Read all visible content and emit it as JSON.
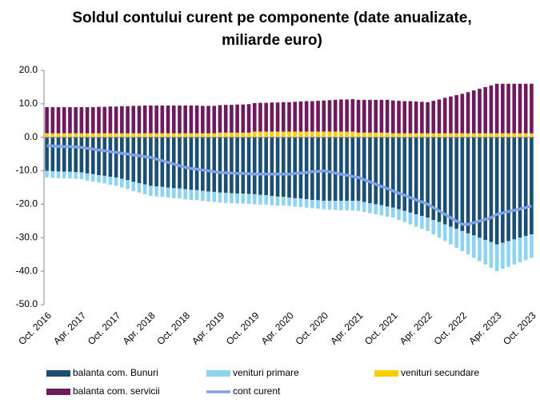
{
  "chart_data": {
    "type": "bar",
    "stacked": true,
    "title": [
      "Soldul contului curent pe componente (date anualizate,",
      "miliarde euro)"
    ],
    "categories": [
      "Oct. 2016",
      null,
      null,
      null,
      null,
      null,
      "Apr. 2017",
      null,
      null,
      null,
      null,
      null,
      "Oct. 2017",
      null,
      null,
      null,
      null,
      null,
      "Apr. 2018",
      null,
      null,
      null,
      null,
      null,
      "Oct. 2018",
      null,
      null,
      null,
      null,
      null,
      "Apr. 2019",
      null,
      null,
      null,
      null,
      null,
      "Oct. 2019",
      null,
      null,
      null,
      null,
      null,
      "Apr. 2020",
      null,
      null,
      null,
      null,
      null,
      "Oct. 2020",
      null,
      null,
      null,
      null,
      null,
      "Apr. 2021",
      null,
      null,
      null,
      null,
      null,
      "Oct. 2021",
      null,
      null,
      null,
      null,
      null,
      "Apr. 2022",
      null,
      null,
      null,
      null,
      null,
      "Oct. 2022",
      null,
      null,
      null,
      null,
      null,
      "Apr. 2023",
      null,
      null,
      null,
      null,
      null,
      "Oct. 2023"
    ],
    "series": [
      {
        "name": "balanta com. Bunuri",
        "color": "#1b4e70",
        "values": [
          -10,
          -10.1,
          -10.2,
          -10.3,
          -10.3,
          -10.4,
          -10.5,
          -10.8,
          -11,
          -11.3,
          -11.5,
          -11.8,
          -12,
          -12.4,
          -12.8,
          -13.3,
          -13.7,
          -14.1,
          -14.5,
          -14.7,
          -14.8,
          -15,
          -15.2,
          -15.3,
          -15.5,
          -15.7,
          -15.8,
          -16,
          -16.2,
          -16.3,
          -16.5,
          -16.6,
          -16.7,
          -16.8,
          -16.8,
          -16.9,
          -17,
          -17.2,
          -17.3,
          -17.5,
          -17.7,
          -17.8,
          -18,
          -18.2,
          -18.3,
          -18.5,
          -18.7,
          -18.8,
          -19,
          -19,
          -19,
          -19,
          -19,
          -19,
          -19,
          -19.3,
          -19.7,
          -20,
          -20.3,
          -20.7,
          -21,
          -21.5,
          -22,
          -22.5,
          -23,
          -23.5,
          -24,
          -24.7,
          -25.3,
          -26,
          -26.7,
          -27.3,
          -28,
          -28.7,
          -29.3,
          -30,
          -30.7,
          -31.3,
          -32,
          -31.5,
          -31,
          -30.5,
          -30,
          -29.5,
          -29
        ]
      },
      {
        "name": "venituri primare",
        "color": "#8fd3f0",
        "values": [
          -2,
          -2,
          -2,
          -2,
          -2,
          -2,
          -2,
          -2.1,
          -2.2,
          -2.2,
          -2.3,
          -2.4,
          -2.5,
          -2.6,
          -2.7,
          -2.8,
          -2.8,
          -2.9,
          -3,
          -3,
          -3,
          -3,
          -3,
          -3,
          -3,
          -3,
          -3,
          -3,
          -3,
          -3,
          -3,
          -3,
          -3,
          -3,
          -3,
          -3,
          -3,
          -2.9,
          -2.8,
          -2.8,
          -2.7,
          -2.6,
          -2.5,
          -2.5,
          -2.5,
          -2.5,
          -2.5,
          -2.5,
          -2.5,
          -2.6,
          -2.7,
          -2.8,
          -2.8,
          -2.9,
          -3,
          -3,
          -3,
          -3,
          -3,
          -3,
          -3,
          -3.2,
          -3.3,
          -3.5,
          -3.7,
          -3.8,
          -4,
          -4.3,
          -4.7,
          -5,
          -5.3,
          -5.7,
          -6,
          -6.3,
          -6.7,
          -7,
          -7.3,
          -7.7,
          -8,
          -7.8,
          -7.7,
          -7.5,
          -7.3,
          -7.2,
          -7
        ]
      },
      {
        "name": "venituri secundare",
        "color": "#ffcc00",
        "values": [
          1.2,
          1.2,
          1.2,
          1.2,
          1.2,
          1.2,
          1.2,
          1.2,
          1.2,
          1.2,
          1.2,
          1.2,
          1.2,
          1.2,
          1.2,
          1.2,
          1.2,
          1.2,
          1.2,
          1.2,
          1.2,
          1.2,
          1.2,
          1.2,
          1.2,
          1.2,
          1.2,
          1.2,
          1.2,
          1.2,
          1.4,
          1.4,
          1.4,
          1.4,
          1.4,
          1.4,
          1.7,
          1.7,
          1.7,
          1.7,
          1.7,
          1.7,
          1.7,
          1.7,
          1.7,
          1.7,
          1.7,
          1.7,
          1.7,
          1.7,
          1.7,
          1.7,
          1.7,
          1.7,
          1.4,
          1.4,
          1.4,
          1.4,
          1.4,
          1.4,
          1.2,
          1.2,
          1.2,
          1.2,
          1.2,
          1.2,
          1.2,
          1.2,
          1.2,
          1.2,
          1.2,
          1.2,
          1.2,
          1.2,
          1.2,
          1.2,
          1.2,
          1.2,
          1.2,
          1.2,
          1.2,
          1.2,
          1.2,
          1.2,
          1.2
        ]
      },
      {
        "name": "balanta com. servicii",
        "color": "#6e1a5c",
        "values": [
          7.8,
          7.8,
          7.8,
          7.8,
          7.8,
          7.8,
          7.8,
          7.8,
          7.8,
          7.9,
          7.9,
          8,
          8,
          8.1,
          8.1,
          8.2,
          8.2,
          8.3,
          8.3,
          8.3,
          8.3,
          8.3,
          8.3,
          8.3,
          8.3,
          8.3,
          8.3,
          8.2,
          8.2,
          8.2,
          8.2,
          8.3,
          8.3,
          8.4,
          8.4,
          8.5,
          8.5,
          8.6,
          8.6,
          8.7,
          8.7,
          8.8,
          8.8,
          8.9,
          9,
          9.1,
          9.1,
          9.2,
          9.3,
          9.4,
          9.5,
          9.6,
          9.6,
          9.7,
          9.8,
          9.8,
          9.8,
          9.8,
          9.8,
          9.8,
          9.8,
          9.7,
          9.6,
          9.6,
          9.5,
          9.4,
          9.3,
          9.7,
          10.1,
          10.6,
          11,
          11.4,
          11.8,
          12.3,
          12.8,
          13.3,
          13.8,
          14.3,
          14.8,
          14.8,
          14.8,
          14.8,
          14.8,
          14.8,
          14.8
        ]
      },
      {
        "name": "cont curent",
        "type": "line",
        "color": "#7ea3e8",
        "values": [
          -2.5,
          -2.6,
          -2.7,
          -2.8,
          -2.8,
          -2.9,
          -3,
          -3.3,
          -3.5,
          -3.8,
          -4,
          -4.3,
          -4.5,
          -4.8,
          -5,
          -5.3,
          -5.5,
          -5.8,
          -6,
          -6.5,
          -7,
          -7.5,
          -8,
          -8.5,
          -9,
          -9.3,
          -9.5,
          -9.8,
          -10,
          -10.3,
          -10.5,
          -10.6,
          -10.7,
          -10.8,
          -10.8,
          -10.9,
          -11,
          -11,
          -11,
          -11,
          -11,
          -11,
          -11,
          -10.8,
          -10.7,
          -10.5,
          -10.3,
          -10.2,
          -10,
          -10.3,
          -10.7,
          -11,
          -11.3,
          -11.7,
          -12,
          -12.7,
          -13.3,
          -14,
          -14.7,
          -15.3,
          -16,
          -16.7,
          -17.3,
          -18,
          -18.7,
          -19.3,
          -20,
          -21,
          -22,
          -23,
          -24,
          -25,
          -26,
          -26,
          -25.5,
          -25,
          -24.5,
          -24,
          -23,
          -22.6,
          -22.2,
          -21.8,
          -21.4,
          -21,
          -20.5
        ]
      }
    ],
    "ylim": [
      -50,
      20
    ],
    "yticks": [
      {
        "value": -50,
        "label": "-50.0"
      },
      {
        "value": -40,
        "label": "-40.0"
      },
      {
        "value": -30,
        "label": "-30.0"
      },
      {
        "value": -20,
        "label": "-20.0"
      },
      {
        "value": -10,
        "label": "-10.0"
      },
      {
        "value": 0,
        "label": "0.0"
      },
      {
        "value": 10,
        "label": "10.0"
      },
      {
        "value": 20,
        "label": "20.0"
      }
    ],
    "grid": false,
    "legend": "bottom"
  }
}
